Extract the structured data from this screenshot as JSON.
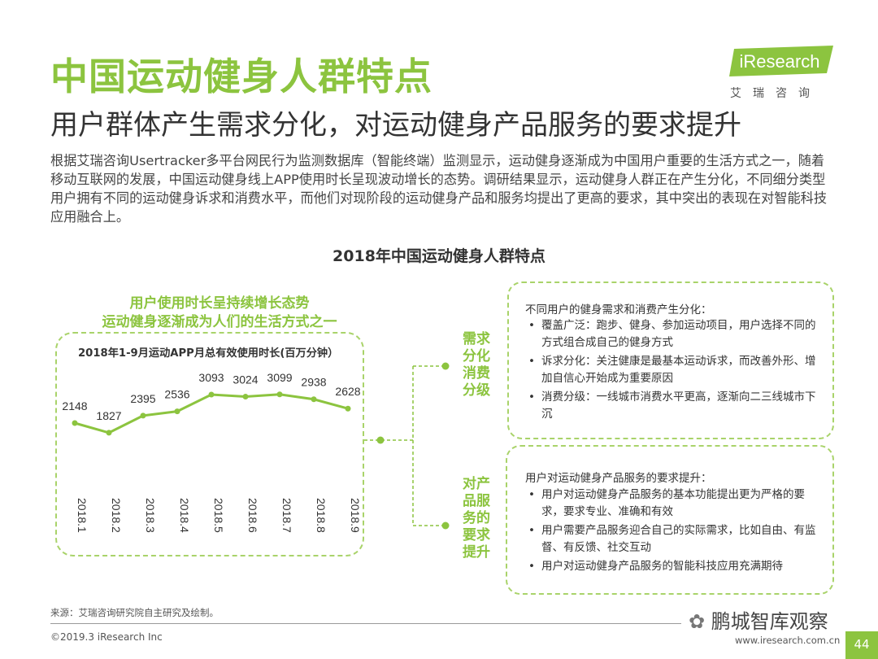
{
  "header": {
    "title": "中国运动健身人群特点",
    "subtitle": "用户群体产生需求分化，对运动健身产品服务的要求提升",
    "logo_text": "iResearch",
    "logo_sub": "艾瑞咨询"
  },
  "intro": "根据艾瑞咨询Usertracker多平台网民行为监测数据库（智能终端）监测显示，运动健身逐渐成为中国用户重要的生活方式之一，随着移动互联网的发展，中国运动健身线上APP使用时长呈现波动增长的态势。调研结果显示，运动健身人群正在产生分化，不同细分类型用户拥有不同的运动健身诉求和消费水平，而他们对现阶段的运动健身产品和服务均提出了更高的要求，其中突出的表现在对智能科技应用融合上。",
  "chart_heading": "2018年中国运动健身人群特点",
  "chart_captions": [
    "用户使用时长呈持续增长态势",
    "运动健身逐渐成为人们的生活方式之一"
  ],
  "chart_data": {
    "type": "line",
    "title": "2018年1-9月运动APP月总有效使用时长(百万分钟）",
    "categories": [
      "2018.1",
      "2018.2",
      "2018.3",
      "2018.4",
      "2018.5",
      "2018.6",
      "2018.7",
      "2018.8",
      "2018.9"
    ],
    "values": [
      2148,
      1827,
      2395,
      2536,
      3093,
      3024,
      3099,
      2938,
      2628
    ],
    "data_labels": true,
    "grid": false,
    "colors": {
      "line": "#8cc43f"
    }
  },
  "side_labels": {
    "label_1": "需求分化消费分级",
    "label_2": "对产品服务的要求提升"
  },
  "panel_1": {
    "title": "不同用户的健身需求和消费产生分化：",
    "items": [
      "覆盖广泛：跑步、健身、参加运动项目，用户选择不同的方式组合成自己的健身方式",
      "诉求分化：关注健康是最基本运动诉求，而改善外形、增加自信心开始成为重要原因",
      "消费分级：一线城市消费水平更高，逐渐向二三线城市下沉"
    ]
  },
  "panel_2": {
    "title": "用户对运动健身产品服务的要求提升：",
    "items": [
      "用户对运动健身产品服务的基本功能提出更为严格的要求，要求专业、准确和有效",
      "用户需要产品服务迎合自己的实际需求，比如自由、有监督、有反馈、社交互动",
      "用户对运动健身产品服务的智能科技应用充满期待"
    ]
  },
  "footer": {
    "source": "来源：艾瑞咨询研究院自主研究及绘制。",
    "copyright": "©2019.3 iResearch Inc",
    "site": "www.iresearch.com.cn",
    "watermark": "鹏城智库观察",
    "page": "44"
  },
  "colors": {
    "accent": "#8cc43f",
    "text": "#333333"
  }
}
